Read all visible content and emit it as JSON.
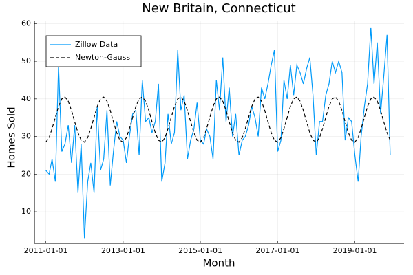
{
  "chart_data": {
    "type": "line",
    "title": "New Britain, Connecticut",
    "x_label": "Month",
    "y_label": "Homes Sold",
    "x": [
      "2011-01-01",
      "2011-02-01",
      "2011-03-01",
      "2011-04-01",
      "2011-05-01",
      "2011-06-01",
      "2011-07-01",
      "2011-08-01",
      "2011-09-01",
      "2011-10-01",
      "2011-11-01",
      "2011-12-01",
      "2012-01-01",
      "2012-02-01",
      "2012-03-01",
      "2012-04-01",
      "2012-05-01",
      "2012-06-01",
      "2012-07-01",
      "2012-08-01",
      "2012-09-01",
      "2012-10-01",
      "2012-11-01",
      "2012-12-01",
      "2013-01-01",
      "2013-02-01",
      "2013-03-01",
      "2013-04-01",
      "2013-05-01",
      "2013-06-01",
      "2013-07-01",
      "2013-08-01",
      "2013-09-01",
      "2013-10-01",
      "2013-11-01",
      "2013-12-01",
      "2014-01-01",
      "2014-02-01",
      "2014-03-01",
      "2014-04-01",
      "2014-05-01",
      "2014-06-01",
      "2014-07-01",
      "2014-08-01",
      "2014-09-01",
      "2014-10-01",
      "2014-11-01",
      "2014-12-01",
      "2015-01-01",
      "2015-02-01",
      "2015-03-01",
      "2015-04-01",
      "2015-05-01",
      "2015-06-01",
      "2015-07-01",
      "2015-08-01",
      "2015-09-01",
      "2015-10-01",
      "2015-11-01",
      "2015-12-01",
      "2016-01-01",
      "2016-02-01",
      "2016-03-01",
      "2016-04-01",
      "2016-05-01",
      "2016-06-01",
      "2016-07-01",
      "2016-08-01",
      "2016-09-01",
      "2016-10-01",
      "2016-11-01",
      "2016-12-01",
      "2017-01-01",
      "2017-02-01",
      "2017-03-01",
      "2017-04-01",
      "2017-05-01",
      "2017-06-01",
      "2017-07-01",
      "2017-08-01",
      "2017-09-01",
      "2017-10-01",
      "2017-11-01",
      "2017-12-01",
      "2018-01-01",
      "2018-02-01",
      "2018-03-01",
      "2018-04-01",
      "2018-05-01",
      "2018-06-01",
      "2018-07-01",
      "2018-08-01",
      "2018-09-01",
      "2018-10-01",
      "2018-11-01",
      "2018-12-01",
      "2019-01-01",
      "2019-02-01",
      "2019-03-01",
      "2019-04-01",
      "2019-05-01",
      "2019-06-01",
      "2019-07-01",
      "2019-08-01",
      "2019-09-01",
      "2019-10-01",
      "2019-11-01",
      "2019-12-01"
    ],
    "series": [
      {
        "name": "Zillow Data",
        "color": "#009af9",
        "dash": "solid",
        "values": [
          21,
          20,
          24,
          18,
          49,
          26,
          28,
          33,
          23,
          33,
          15,
          28,
          3,
          18,
          23,
          15,
          38,
          21,
          24,
          37,
          17,
          26,
          34,
          30,
          29,
          23,
          30,
          36,
          37,
          25,
          45,
          34,
          35,
          31,
          34,
          44,
          18,
          23,
          36,
          28,
          31,
          53,
          37,
          41,
          24,
          29,
          32,
          39,
          29,
          28,
          32,
          30,
          24,
          45,
          37,
          51,
          34,
          43,
          30,
          36,
          25,
          29,
          30,
          33,
          38,
          35,
          30,
          43,
          40,
          44,
          49,
          53,
          26,
          29,
          45,
          40,
          49,
          41,
          49,
          47,
          44,
          48,
          51,
          41,
          25,
          34,
          34,
          41,
          44,
          50,
          47,
          50,
          47,
          29,
          35,
          34,
          25,
          18,
          30,
          38,
          44,
          59,
          44,
          55,
          36,
          46,
          57,
          25
        ]
      },
      {
        "name": "Newton-Gauss",
        "color": "#000000",
        "dash": "dashed",
        "values": [
          28.5,
          29.7,
          32.1,
          35.1,
          38.0,
          40.0,
          40.5,
          39.4,
          36.9,
          33.9,
          31.0,
          29.0,
          28.5,
          29.7,
          32.1,
          35.1,
          38.0,
          40.0,
          40.5,
          39.4,
          36.9,
          33.9,
          31.0,
          29.0,
          28.5,
          29.7,
          32.1,
          35.1,
          38.0,
          40.0,
          40.5,
          39.4,
          36.9,
          33.9,
          31.0,
          29.0,
          28.5,
          29.7,
          32.1,
          35.1,
          38.0,
          40.0,
          40.5,
          39.4,
          36.9,
          33.9,
          31.0,
          29.0,
          28.5,
          29.7,
          32.1,
          35.1,
          38.0,
          40.0,
          40.5,
          39.4,
          36.9,
          33.9,
          31.0,
          29.0,
          28.5,
          29.7,
          32.1,
          35.1,
          38.0,
          40.0,
          40.5,
          39.4,
          36.9,
          33.9,
          31.0,
          29.0,
          28.5,
          29.7,
          32.1,
          35.1,
          38.0,
          40.0,
          40.5,
          39.4,
          36.9,
          33.9,
          31.0,
          29.0,
          28.5,
          29.7,
          32.1,
          35.1,
          38.0,
          40.0,
          40.5,
          39.4,
          36.9,
          33.9,
          31.0,
          29.0,
          28.5,
          29.7,
          32.1,
          35.1,
          38.0,
          40.0,
          40.5,
          39.4,
          36.9,
          33.9,
          31.0,
          29.0
        ]
      }
    ],
    "xlim": [
      "2010-09-15",
      "2020-04-10"
    ],
    "xticks": [
      "2011-01-01",
      "2013-01-01",
      "2015-01-01",
      "2017-01-01",
      "2019-01-01"
    ],
    "ylim": [
      1.6,
      60.8
    ],
    "yticks": [
      10,
      20,
      30,
      40,
      50,
      60
    ],
    "grid": true,
    "legend": "top-left"
  }
}
